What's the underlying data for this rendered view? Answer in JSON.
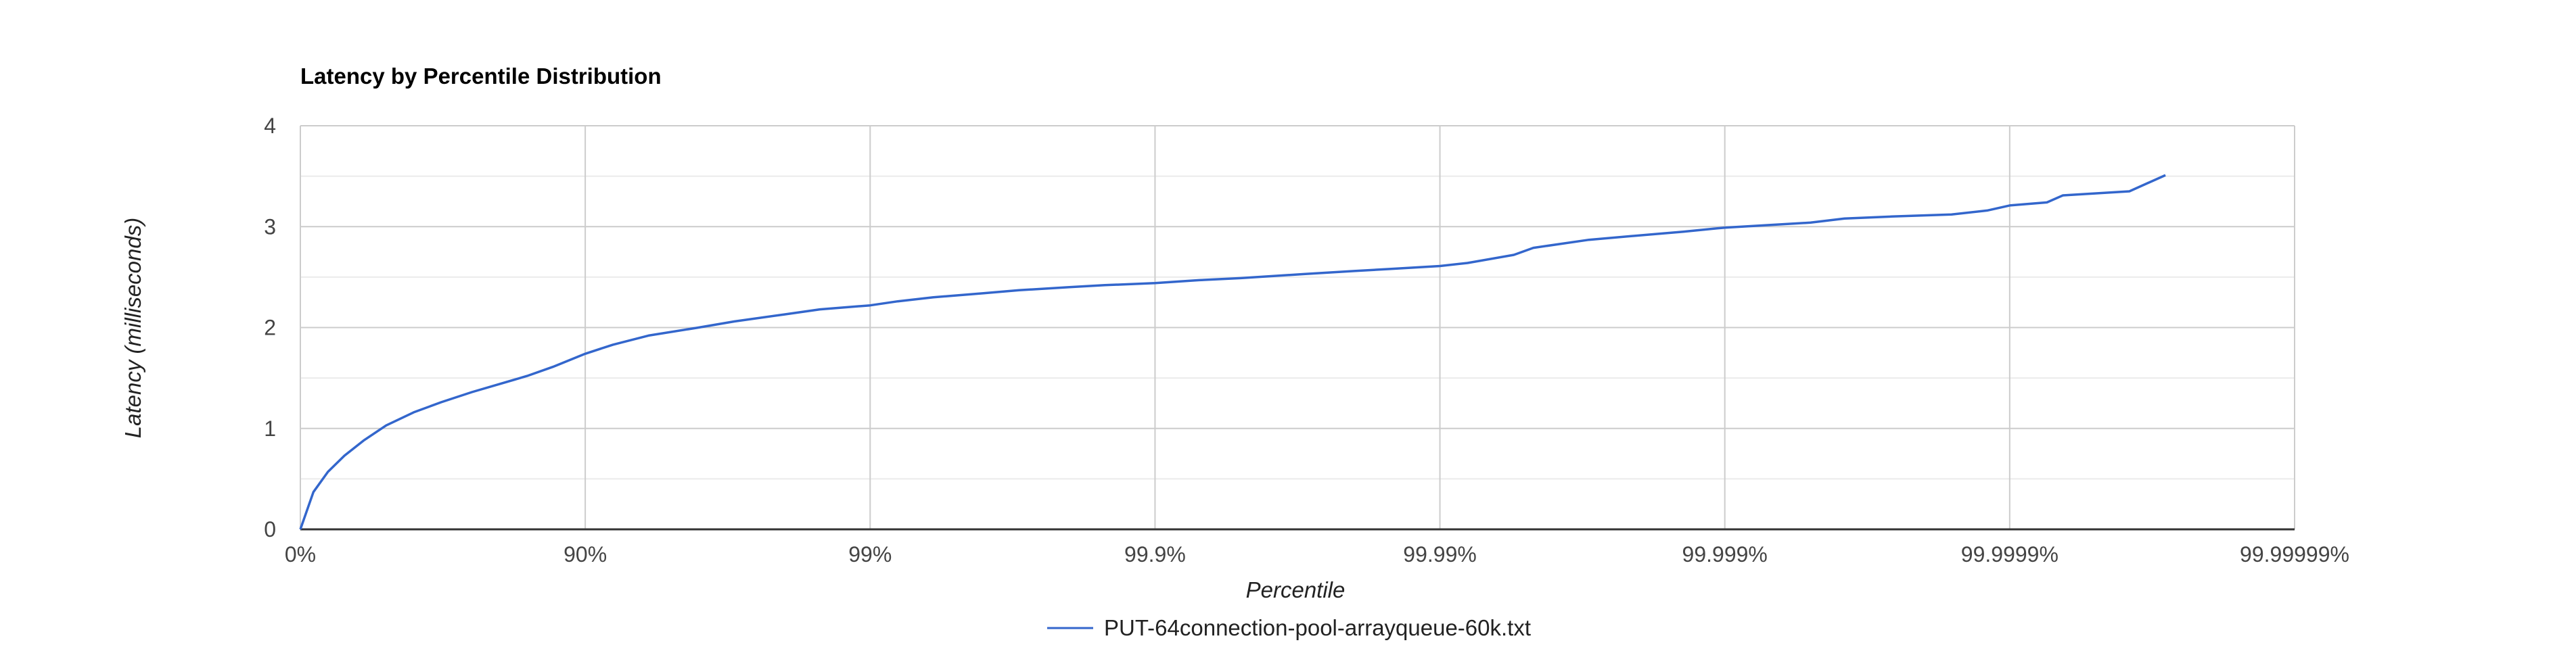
{
  "chart_data": {
    "type": "line",
    "title": "Latency by Percentile Distribution",
    "xlabel": "Percentile",
    "ylabel": "Latency (milliseconds)",
    "x_scale": "log10(1/(1-p))",
    "x_ticks": [
      "0%",
      "90%",
      "99%",
      "99.9%",
      "99.99%",
      "99.999%",
      "99.9999%",
      "99.99999%"
    ],
    "x_tick_values": [
      0,
      90,
      99,
      99.9,
      99.99,
      99.999,
      99.9999,
      99.99999
    ],
    "xlim": [
      0,
      99.99999
    ],
    "y_ticks": [
      "0",
      "1",
      "2",
      "3",
      "4"
    ],
    "ylim": [
      0,
      4
    ],
    "grid": true,
    "legend_position": "bottom",
    "colors": {
      "series": "#3366cc",
      "grid_major": "#cccccc",
      "grid_minor": "#ebebeb",
      "axis": "#333333"
    },
    "series": [
      {
        "name": "PUT-64connection-pool-arrayqueue-60k.txt",
        "x": [
          0,
          10,
          20,
          30,
          40,
          50,
          60,
          68,
          75,
          80,
          84,
          87,
          90,
          92,
          94,
          96,
          97,
          98,
          98.5,
          99,
          99.2,
          99.4,
          99.6,
          99.7,
          99.8,
          99.85,
          99.9,
          99.93,
          99.95,
          99.97,
          99.98,
          99.985,
          99.99,
          99.992,
          99.9945,
          99.9953,
          99.997,
          99.9983,
          99.9986,
          99.999,
          99.99934,
          99.9995,
          99.99962,
          99.99974,
          99.99984,
          99.99988,
          99.9999,
          99.999926,
          99.999935,
          99.999962,
          99.9999716
        ],
        "y": [
          0,
          0.37,
          0.57,
          0.73,
          0.88,
          1.03,
          1.16,
          1.26,
          1.36,
          1.44,
          1.52,
          1.61,
          1.74,
          1.83,
          1.92,
          2.0,
          2.06,
          2.13,
          2.18,
          2.22,
          2.26,
          2.3,
          2.34,
          2.37,
          2.4,
          2.42,
          2.44,
          2.47,
          2.49,
          2.53,
          2.56,
          2.58,
          2.61,
          2.64,
          2.72,
          2.79,
          2.87,
          2.93,
          2.95,
          2.99,
          3.02,
          3.04,
          3.08,
          3.1,
          3.12,
          3.16,
          3.21,
          3.24,
          3.31,
          3.35,
          3.51
        ]
      }
    ]
  }
}
